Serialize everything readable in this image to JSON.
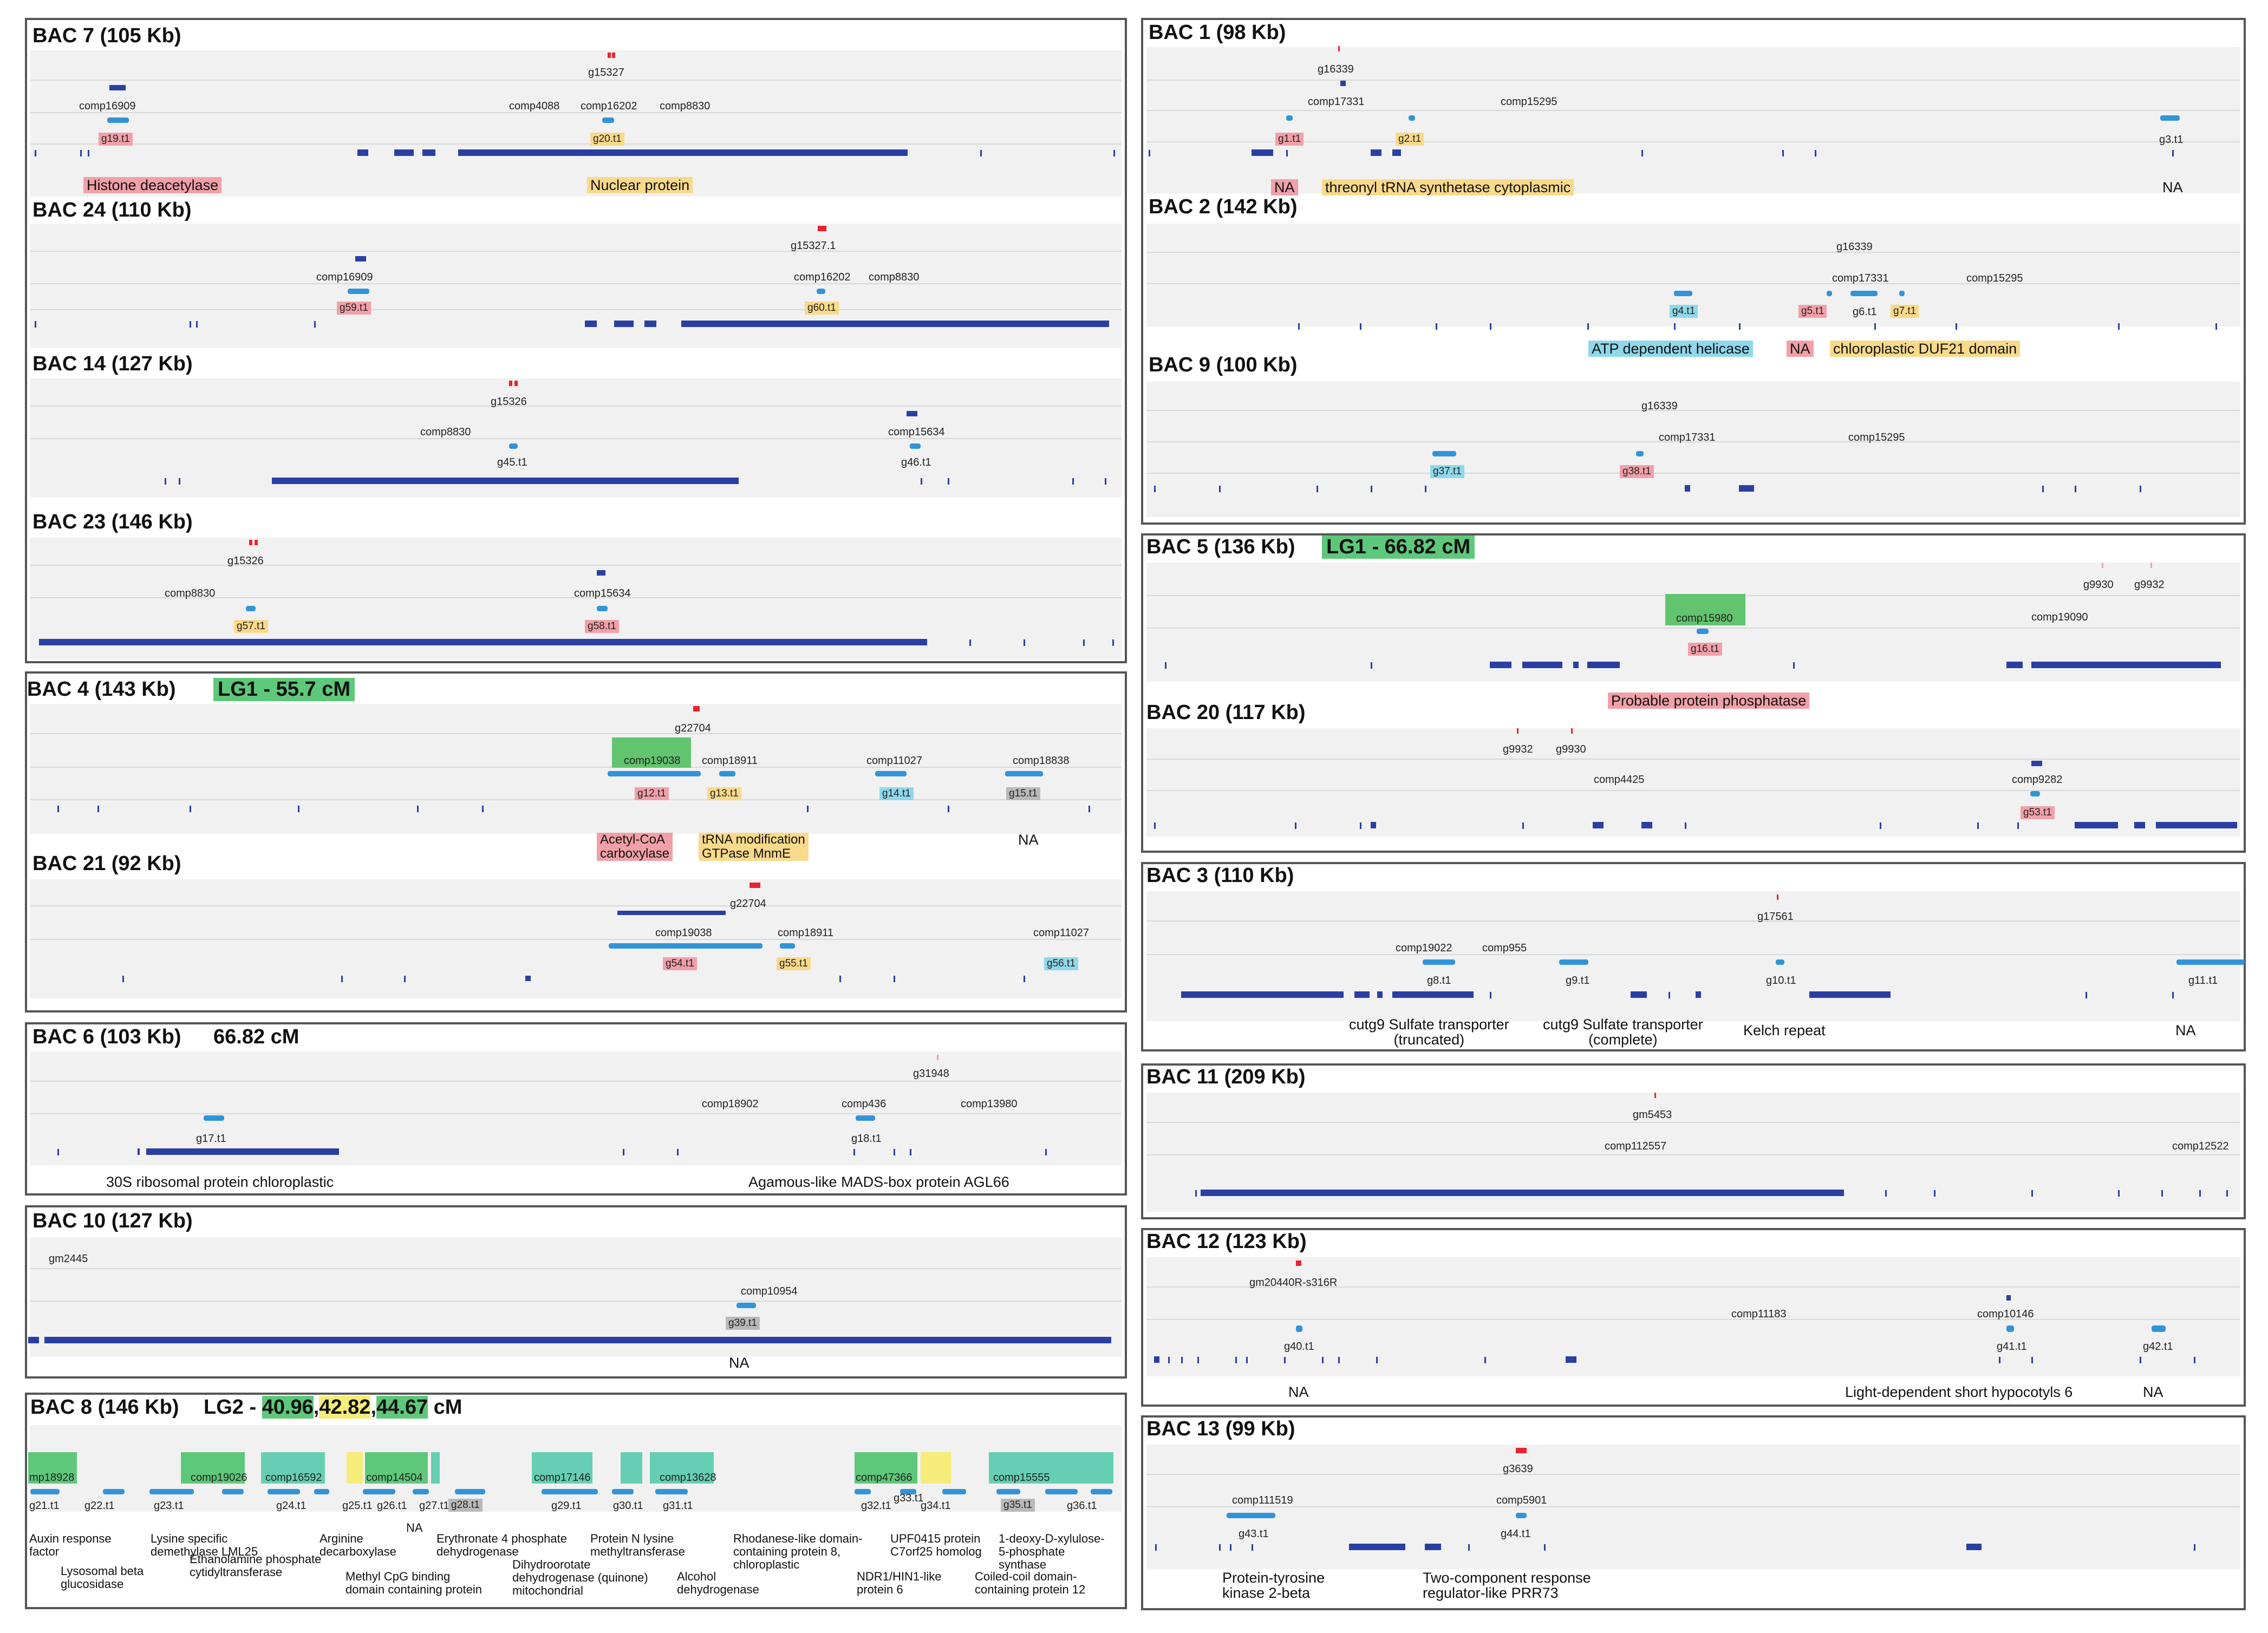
{
  "colors": {
    "red": "#f2a0a8",
    "red_mark": "#e8232e",
    "orange": "#f9d98a",
    "cyan": "#8fd8ec",
    "green": "#5ec87a",
    "green_block": "#62c46e",
    "teal": "#66cfb3",
    "yellow": "#f5ec7a",
    "gray": "#b9b9b9",
    "track": "#2a3fa3",
    "gene": "#3294d8"
  },
  "left": {
    "bac7": {
      "title": "BAC 7 (105 Kb)",
      "labels": [
        "g15327",
        "comp16909",
        "comp4088",
        "comp16202",
        "comp8830"
      ],
      "genes": [
        "g19.t1",
        "g20.t1"
      ],
      "ann": [
        "Histone deacetylase",
        "Nuclear protein"
      ]
    },
    "bac24": {
      "title": "BAC 24 (110 Kb)",
      "labels": [
        "g15327.1",
        "comp16909",
        "comp16202",
        "comp8830"
      ],
      "genes": [
        "g59.t1",
        "g60.t1"
      ]
    },
    "bac14": {
      "title": "BAC 14 (127 Kb)",
      "labels": [
        "g15326",
        "comp8830",
        "comp15634"
      ],
      "genes": [
        "g45.t1",
        "g46.t1"
      ]
    },
    "bac23": {
      "title": "BAC 23 (146 Kb)",
      "labels": [
        "g15326",
        "comp8830",
        "comp15634"
      ],
      "genes": [
        "g57.t1",
        "g58.t1"
      ]
    },
    "bac4": {
      "title": "BAC 4 (143 Kb)",
      "lg": "LG1 - 55.7 cM",
      "labels": [
        "g22704",
        "comp19038",
        "comp18911",
        "comp11027",
        "comp18838"
      ],
      "genes": [
        "g12.t1",
        "g13.t1",
        "g14.t1",
        "g15.t1"
      ],
      "ann": [
        "Acetyl-CoA\ncarboxylase",
        "tRNA modification\nGTPase MnmE",
        "NA"
      ]
    },
    "bac21": {
      "title": "BAC 21 (92 Kb)",
      "labels": [
        "g22704",
        "comp19038",
        "comp18911",
        "comp11027"
      ],
      "genes": [
        "g54.t1",
        "g55.t1",
        "g56.t1"
      ]
    },
    "bac6": {
      "title": "BAC 6 (103 Kb)",
      "lg": "66.82 cM",
      "labels": [
        "g31948",
        "comp18902",
        "comp436",
        "comp13980"
      ],
      "genes": [
        "g17.t1",
        "g18.t1"
      ],
      "ann": [
        "30S ribosomal protein chloroplastic",
        "Agamous-like MADS-box protein AGL66"
      ]
    },
    "bac10": {
      "title": "BAC 10 (127 Kb)",
      "labels": [
        "gm2445",
        "comp10954"
      ],
      "genes": [
        "g39.t1"
      ],
      "ann": [
        "NA"
      ]
    },
    "bac8": {
      "title": "BAC 8 (146 Kb)",
      "lg_prefix": "LG2 - ",
      "lg_values": [
        "40.96",
        "42.82",
        "44.67"
      ],
      "lg_suffix": " cM",
      "comps": [
        "mp18928",
        "comp19026",
        "comp16592",
        "comp14504",
        "comp17146",
        "comp13628",
        "comp47366",
        "comp15555"
      ],
      "genes": [
        "g21.t1",
        "g22.t1",
        "g23.t1",
        "g24.t1",
        "g25.t1",
        "g26.t1",
        "g27.t1",
        "g28.t1",
        "g29.t1",
        "g30.t1",
        "g31.t1",
        "g32.t1",
        "g33.t1",
        "g34.t1",
        "g35.t1",
        "g36.t1"
      ],
      "ann_top": [
        "Auxin response\nfactor",
        "Lysine specific\ndemethylase LML25",
        "Arginine\ndecarboxylase",
        "NA",
        "Erythronate 4 phosphate\ndehydrogenase",
        "Protein N lysine\nmethyltransferase",
        "Rhodanese-like domain-\ncontaining protein 8,\nchloroplastic",
        "UPF0415 protein\nC7orf25 homolog",
        "1-deoxy-D-xylulose-\n5-phosphate\nsynthase"
      ],
      "ann_bot": [
        "Lysosomal beta\nglucosidase",
        "Ethanolamine phosphate\ncytidyltransferase",
        "Methyl CpG binding\ndomain containing protein",
        "Dihydroorotate\ndehydrogenase (quinone)\nmitochondrial",
        "Alcohol\ndehydrogenase",
        "NDR1/HIN1-like\nprotein 6",
        "Coiled-coil domain-\ncontaining protein 12"
      ]
    }
  },
  "right": {
    "bac1": {
      "title": "BAC 1 (98 Kb)",
      "labels": [
        "g16339",
        "comp17331",
        "comp15295"
      ],
      "genes": [
        "g1.t1",
        "g2.t1",
        "g3.t1"
      ],
      "ann": [
        "NA",
        "threonyl tRNA synthetase cytoplasmic",
        "NA"
      ]
    },
    "bac2": {
      "title": "BAC 2 (142 Kb)",
      "labels": [
        "g16339",
        "comp17331",
        "comp15295"
      ],
      "genes": [
        "g4.t1",
        "g5.t1",
        "g6.t1",
        "g7.t1"
      ],
      "ann": [
        "ATP dependent helicase",
        "NA",
        "chloroplastic DUF21 domain"
      ]
    },
    "bac9": {
      "title": "BAC 9 (100 Kb)",
      "labels": [
        "g16339",
        "comp17331",
        "comp15295"
      ],
      "genes": [
        "g37.t1",
        "g38.t1"
      ]
    },
    "bac5": {
      "title": "BAC 5 (136 Kb)",
      "lg": "LG1 - 66.82 cM",
      "labels": [
        "g9930",
        "g9932",
        "comp15980",
        "comp19090"
      ],
      "genes": [
        "g16.t1"
      ],
      "ann": [
        "Probable protein phosphatase"
      ]
    },
    "bac20": {
      "title": "BAC 20 (117 Kb)",
      "labels": [
        "g9932",
        "g9930",
        "comp4425",
        "comp9282"
      ],
      "genes": [
        "g53.t1"
      ]
    },
    "bac3": {
      "title": "BAC 3 (110 Kb)",
      "labels": [
        "g17561",
        "comp19022",
        "comp955"
      ],
      "genes": [
        "g8.t1",
        "g9.t1",
        "g10.t1",
        "g11.t1"
      ],
      "ann": [
        "cutg9 Sulfate transporter\n(truncated)",
        "cutg9 Sulfate transporter\n(complete)",
        "Kelch repeat",
        "NA"
      ]
    },
    "bac11": {
      "title": "BAC 11 (209 Kb)",
      "labels": [
        "gm5453",
        "comp112557",
        "comp12522"
      ]
    },
    "bac12": {
      "title": "BAC 12 (123 Kb)",
      "labels": [
        "gm20440R-s316R",
        "comp11183",
        "comp10146"
      ],
      "genes": [
        "g40.t1",
        "g41.t1",
        "g42.t1"
      ],
      "ann": [
        "NA",
        "Light-dependent short hypocotyls 6",
        "NA"
      ]
    },
    "bac13": {
      "title": "BAC 13 (99 Kb)",
      "labels": [
        "g3639",
        "comp111519",
        "comp5901"
      ],
      "genes": [
        "g43.t1",
        "g44.t1"
      ],
      "ann": [
        "Protein-tyrosine\nkinase 2-beta",
        "Two-component response\nregulator-like PRR73"
      ]
    }
  }
}
